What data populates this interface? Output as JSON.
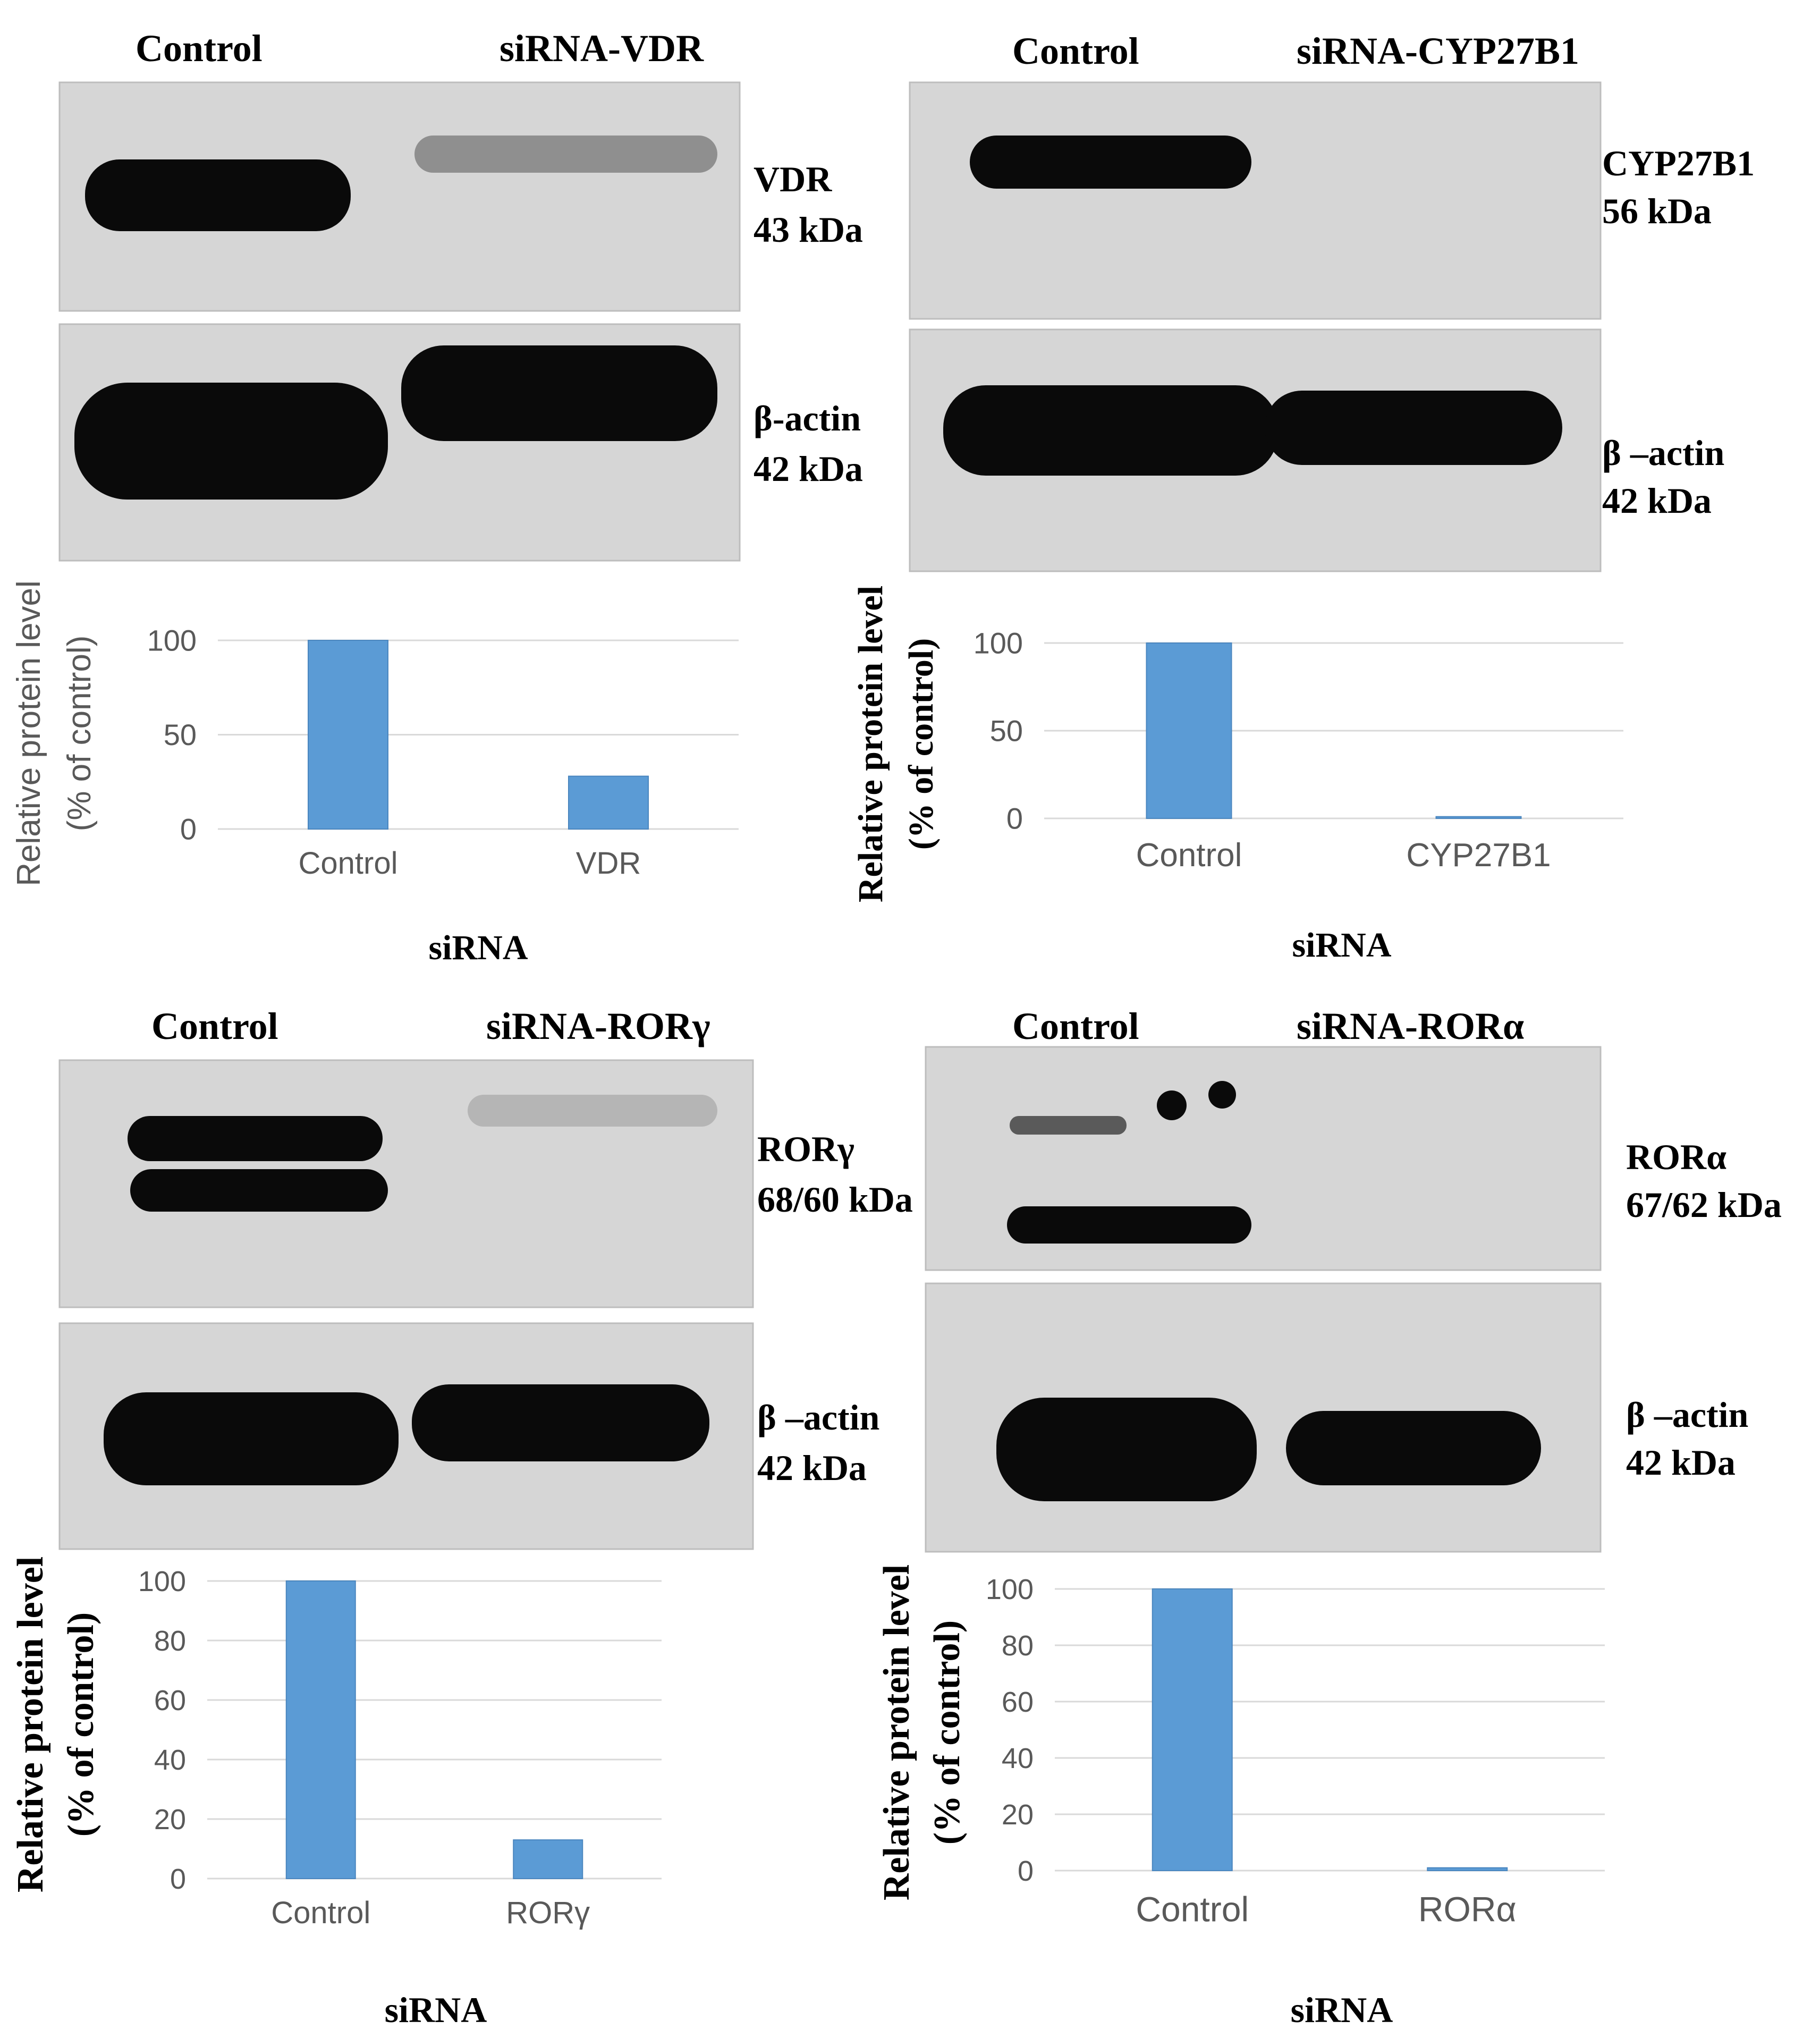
{
  "panels": [
    {
      "id": "vdr",
      "lane_labels": [
        "Control",
        "siRNA-VDR"
      ],
      "target_label": [
        "VDR",
        "43 kDa"
      ],
      "actin_label": [
        "β-actin",
        "42 kDa"
      ],
      "chart_data": {
        "type": "bar",
        "categories": [
          "Control",
          "VDR"
        ],
        "values": [
          100,
          28
        ],
        "xlabel": "siRNA",
        "ylabel": [
          "Relative protein level",
          "(% of control)"
        ],
        "ylim": [
          0,
          100
        ],
        "yticks": [
          "0",
          "50",
          "100"
        ],
        "grid": true
      }
    },
    {
      "id": "cyp27b1",
      "lane_labels": [
        "Control",
        "siRNA-CYP27B1"
      ],
      "target_label": [
        "CYP27B1",
        "56 kDa"
      ],
      "actin_label": [
        "β –actin",
        "42 kDa"
      ],
      "chart_data": {
        "type": "bar",
        "categories": [
          "Control",
          "CYP27B1"
        ],
        "values": [
          100,
          1
        ],
        "xlabel": "siRNA",
        "ylabel": [
          "Relative protein level",
          "(% of control)"
        ],
        "ylim": [
          0,
          100
        ],
        "yticks": [
          "0",
          "50",
          "100"
        ],
        "grid": true
      }
    },
    {
      "id": "rorg",
      "lane_labels": [
        "Control",
        "siRNA-RORγ"
      ],
      "target_label": [
        "RORγ",
        "68/60 kDa"
      ],
      "actin_label": [
        "β –actin",
        "42 kDa"
      ],
      "chart_data": {
        "type": "bar",
        "categories": [
          "Control",
          "RORγ"
        ],
        "values": [
          100,
          13
        ],
        "xlabel": "siRNA",
        "ylabel": [
          "Relative protein level",
          "(% of control)"
        ],
        "ylim": [
          0,
          100
        ],
        "yticks": [
          "0",
          "20",
          "40",
          "60",
          "80",
          "100"
        ],
        "grid": true
      }
    },
    {
      "id": "rora",
      "lane_labels": [
        "Control",
        "siRNA-RORα"
      ],
      "target_label": [
        "RORα",
        "67/62 kDa"
      ],
      "actin_label": [
        "β –actin",
        "42 kDa"
      ],
      "chart_data": {
        "type": "bar",
        "categories": [
          "Control",
          "RORα"
        ],
        "values": [
          100,
          1
        ],
        "xlabel": "siRNA",
        "ylabel": [
          "Relative protein level",
          "(% of control)"
        ],
        "ylim": [
          0,
          100
        ],
        "yticks": [
          "0",
          "20",
          "40",
          "60",
          "80",
          "100"
        ],
        "grid": true
      }
    }
  ],
  "colors": {
    "bar": "#5b9bd5",
    "grid": "#d9d9d9",
    "band": "#0a0a0a",
    "blot_bg": "#d6d6d6"
  }
}
